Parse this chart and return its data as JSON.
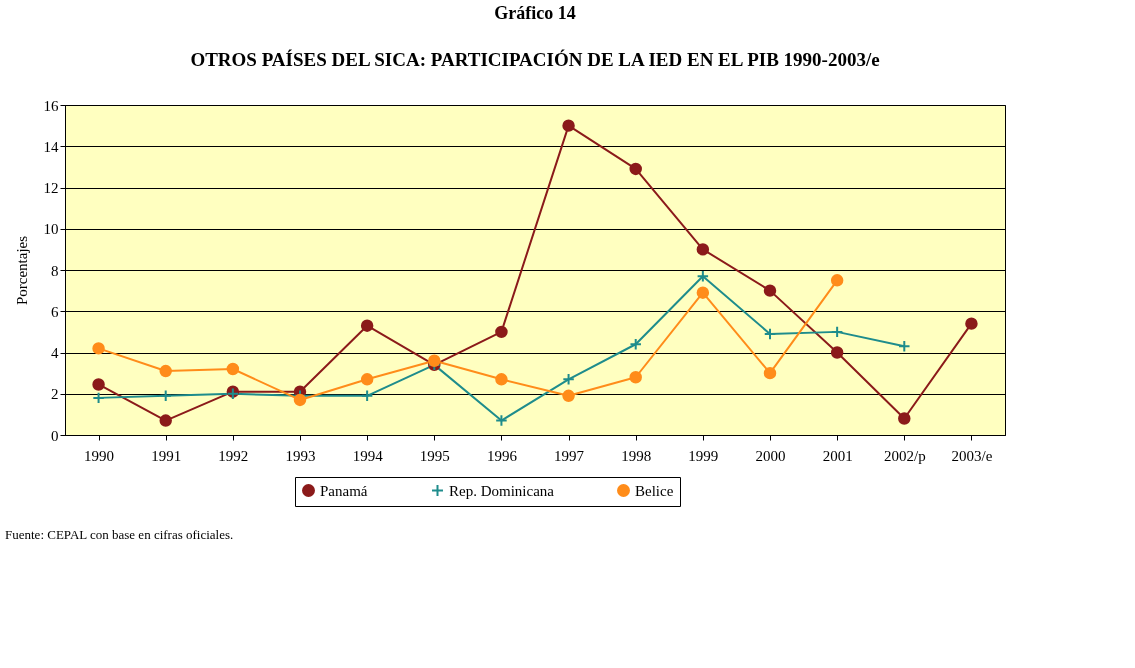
{
  "chart_data": {
    "type": "line",
    "title": "Gráfico 14",
    "subtitle": "OTROS PAÍSES DEL SICA: PARTICIPACIÓN DE LA IED EN EL PIB 1990-2003/e",
    "ylabel": "Porcentajes",
    "categories": [
      "1990",
      "1991",
      "1992",
      "1993",
      "1994",
      "1995",
      "1996",
      "1997",
      "1998",
      "1999",
      "2000",
      "2001",
      "2002/p",
      "2003/e"
    ],
    "series": [
      {
        "name": "Panamá",
        "color": "#8b1a1a",
        "marker": "circle",
        "values": [
          2.45,
          0.7,
          2.1,
          2.1,
          5.3,
          3.4,
          5.0,
          15.0,
          12.9,
          9.0,
          7.0,
          4.0,
          0.8,
          5.4
        ]
      },
      {
        "name": "Rep. Dominicana",
        "color": "#1e8c8c",
        "marker": "cross",
        "values": [
          1.8,
          1.9,
          2.0,
          1.9,
          1.9,
          3.4,
          0.7,
          2.7,
          4.4,
          7.7,
          4.9,
          5.0,
          4.3,
          null
        ]
      },
      {
        "name": "Belice",
        "color": "#ff8c1a",
        "marker": "circle",
        "values": [
          4.2,
          3.1,
          3.2,
          1.7,
          2.7,
          3.6,
          2.7,
          1.9,
          2.8,
          6.9,
          3.0,
          7.5,
          null,
          null
        ]
      }
    ],
    "ylim": [
      0,
      16
    ],
    "yticks": [
      0,
      2,
      4,
      6,
      8,
      10,
      12,
      14,
      16
    ],
    "grid": "y",
    "legend": "bottom",
    "annotations": [
      "Fuente: CEPAL con base en cifras oficiales."
    ]
  }
}
